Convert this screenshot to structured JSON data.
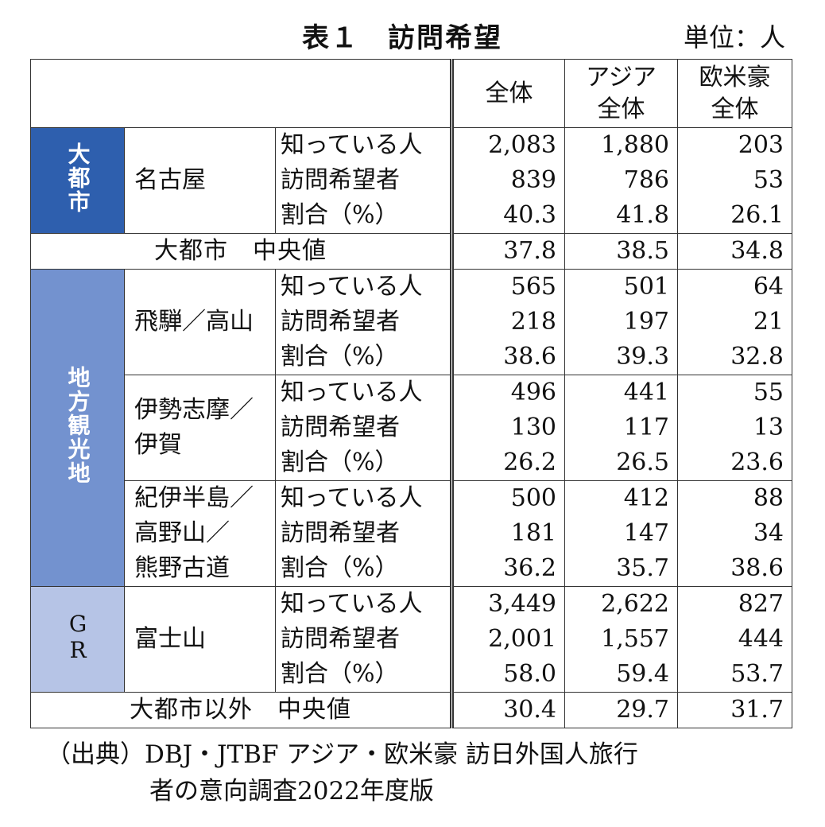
{
  "title": "表１　訪問希望",
  "unit": "単位：人",
  "columns": [
    "全体",
    "アジア",
    "全体",
    "欧米豪",
    "全体"
  ],
  "metric_labels": [
    "知っている人",
    "訪問希望者",
    "割合（%）"
  ],
  "groups": {
    "big_city": "大都市",
    "local": "地方観光地",
    "gr": "GR"
  },
  "rows": {
    "nagoya": {
      "name": "名古屋",
      "total": [
        "2,083",
        "839",
        "40.3"
      ],
      "asia": [
        "1,880",
        "786",
        "41.8"
      ],
      "west": [
        "203",
        "53",
        "26.1"
      ]
    },
    "hida": {
      "name": "飛騨／高山",
      "total": [
        "565",
        "218",
        "38.6"
      ],
      "asia": [
        "501",
        "197",
        "39.3"
      ],
      "west": [
        "64",
        "21",
        "32.8"
      ]
    },
    "ise": {
      "name1": "伊勢志摩／",
      "name2": "伊賀",
      "total": [
        "496",
        "130",
        "26.2"
      ],
      "asia": [
        "441",
        "117",
        "26.5"
      ],
      "west": [
        "55",
        "13",
        "23.6"
      ]
    },
    "kii": {
      "name1": "紀伊半島／",
      "name2": "高野山／",
      "name3": "熊野古道",
      "total": [
        "500",
        "181",
        "36.2"
      ],
      "asia": [
        "412",
        "147",
        "35.7"
      ],
      "west": [
        "88",
        "34",
        "38.6"
      ]
    },
    "fuji": {
      "name": "富士山",
      "total": [
        "3,449",
        "2,001",
        "58.0"
      ],
      "asia": [
        "2,622",
        "1,557",
        "59.4"
      ],
      "west": [
        "827",
        "444",
        "53.7"
      ]
    }
  },
  "medians": {
    "big_city_label": "大都市　中央値",
    "big_city": [
      "37.8",
      "38.5",
      "34.8"
    ],
    "other_label": "大都市以外　中央値",
    "other": [
      "30.4",
      "29.7",
      "31.7"
    ]
  },
  "source_line1": "（出典）DBJ・JTBF アジア・欧米豪 訪日外国人旅行",
  "source_line2": "者の意向調査2022年度版",
  "colors": {
    "big_city": "#2e5fae",
    "local": "#7392cf",
    "gr": "#b6c4e6"
  },
  "chart_data": {
    "type": "table",
    "title": "表１　訪問希望",
    "unit": "単位：人",
    "columns": [
      "全体",
      "アジア全体",
      "欧米豪全体"
    ],
    "records": [
      {
        "group": "大都市",
        "place": "名古屋",
        "知っている人": [
          2083,
          1880,
          203
        ],
        "訪問希望者": [
          839,
          786,
          53
        ],
        "割合（%）": [
          40.3,
          41.8,
          26.1
        ]
      },
      {
        "group": "地方観光地",
        "place": "飛騨／高山",
        "知っている人": [
          565,
          501,
          64
        ],
        "訪問希望者": [
          218,
          197,
          21
        ],
        "割合（%）": [
          38.6,
          39.3,
          32.8
        ]
      },
      {
        "group": "地方観光地",
        "place": "伊勢志摩／伊賀",
        "知っている人": [
          496,
          441,
          55
        ],
        "訪問希望者": [
          130,
          117,
          13
        ],
        "割合（%）": [
          26.2,
          26.5,
          23.6
        ]
      },
      {
        "group": "地方観光地",
        "place": "紀伊半島／高野山／熊野古道",
        "知っている人": [
          500,
          412,
          88
        ],
        "訪問希望者": [
          181,
          147,
          34
        ],
        "割合（%）": [
          36.2,
          35.7,
          38.6
        ]
      },
      {
        "group": "GR",
        "place": "富士山",
        "知っている人": [
          3449,
          2622,
          827
        ],
        "訪問希望者": [
          2001,
          1557,
          444
        ],
        "割合（%）": [
          58.0,
          59.4,
          53.7
        ]
      }
    ],
    "medians": {
      "大都市　中央値": [
        37.8,
        38.5,
        34.8
      ],
      "大都市以外　中央値": [
        30.4,
        29.7,
        31.7
      ]
    }
  }
}
